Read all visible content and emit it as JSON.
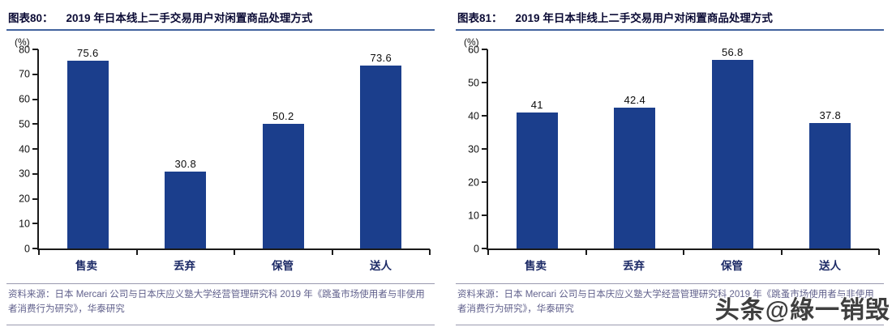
{
  "watermark": {
    "text": "头条@綠一销毁"
  },
  "source_note": "资料来源：日本 Mercari 公司与日本庆应义塾大学经营管理研究科 2019 年《跳蚤市场使用者与非使用者消费行为研究》，华泰研究",
  "colors": {
    "bar": "#1B3E8C",
    "title_text": "#0B0B35",
    "title_underline": "#42639E",
    "axis": "#1A1A1A",
    "category_label": "#1C2A66",
    "source_text": "#61618C",
    "watermark_text": "#3F3F3F"
  },
  "chart_data": [
    {
      "type": "bar",
      "figure_label": "图表80：",
      "title": "2019 年日本线上二手交易用户对闲置商品处理方式",
      "unit": "(%)",
      "categories": [
        "售卖",
        "丢弃",
        "保管",
        "送人"
      ],
      "values": [
        75.6,
        30.8,
        50.2,
        73.6
      ],
      "value_labels": [
        "75.6",
        "30.8",
        "50.2",
        "73.6"
      ],
      "ylim": [
        0,
        80
      ],
      "ytick_step": 10,
      "grid": false,
      "legend": false
    },
    {
      "type": "bar",
      "figure_label": "图表81：",
      "title": "2019 年日本非线上二手交易用户对闲置商品处理方式",
      "unit": "(%)",
      "categories": [
        "售卖",
        "丢弃",
        "保管",
        "送人"
      ],
      "values": [
        41,
        42.4,
        56.8,
        37.8
      ],
      "value_labels": [
        "41",
        "42.4",
        "56.8",
        "37.8"
      ],
      "ylim": [
        0,
        60
      ],
      "ytick_step": 10,
      "grid": false,
      "legend": false
    }
  ]
}
